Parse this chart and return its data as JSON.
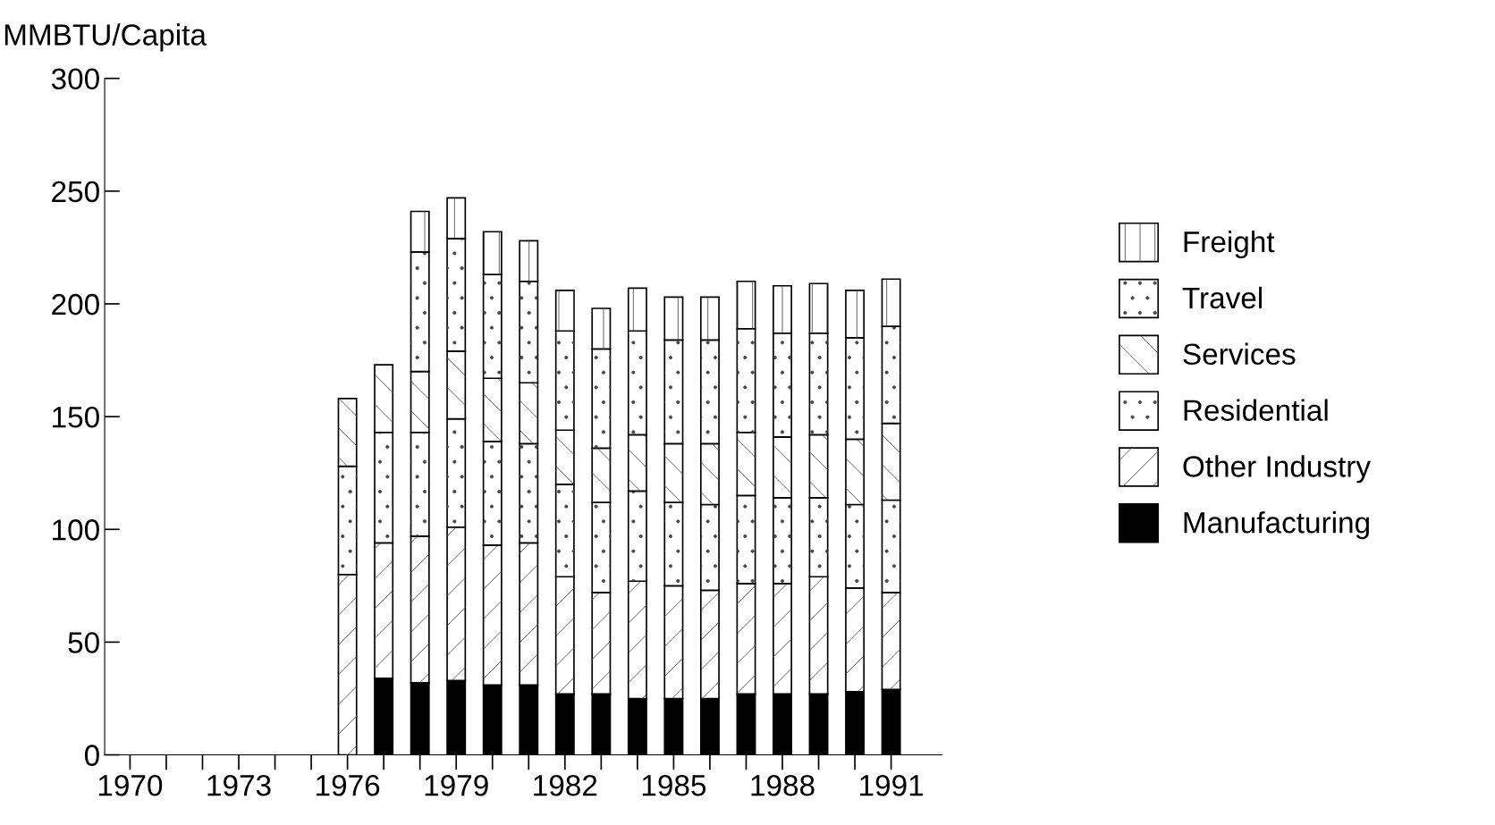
{
  "chart_data": {
    "type": "bar",
    "stacked": true,
    "ylabel": "MMBTU/Capita",
    "categories": [
      "1970",
      null,
      null,
      "1973",
      null,
      null,
      "1976",
      null,
      null,
      "1979",
      null,
      null,
      "1982",
      null,
      null,
      "1985",
      null,
      null,
      "1988",
      null,
      null,
      "1991"
    ],
    "series": [
      {
        "name": "Manufacturing",
        "color": "#000000",
        "values": [
          null,
          null,
          null,
          null,
          null,
          null,
          null,
          34,
          32,
          33,
          31,
          31,
          27,
          27,
          25,
          25,
          25,
          27,
          27,
          27,
          28,
          29
        ]
      },
      {
        "name": "Other Industry",
        "color": "#ffffff",
        "values": [
          null,
          null,
          null,
          null,
          null,
          null,
          80,
          60,
          65,
          68,
          62,
          63,
          52,
          45,
          52,
          50,
          48,
          49,
          49,
          52,
          46,
          43
        ]
      },
      {
        "name": "Residential",
        "color": "#ffffff",
        "values": [
          null,
          null,
          null,
          null,
          null,
          null,
          48,
          49,
          46,
          48,
          46,
          44,
          41,
          40,
          40,
          37,
          38,
          39,
          38,
          35,
          37,
          41
        ]
      },
      {
        "name": "Services",
        "color": "#ffffff",
        "values": [
          null,
          null,
          null,
          null,
          null,
          null,
          30,
          30,
          27,
          30,
          28,
          27,
          24,
          24,
          25,
          26,
          27,
          28,
          27,
          28,
          29,
          34
        ]
      },
      {
        "name": "Travel",
        "color": "#ffffff",
        "values": [
          null,
          null,
          null,
          null,
          null,
          null,
          null,
          null,
          53,
          50,
          46,
          45,
          44,
          44,
          46,
          46,
          46,
          46,
          46,
          45,
          45,
          43
        ]
      },
      {
        "name": "Freight",
        "color": "#ffffff",
        "values": [
          null,
          null,
          null,
          null,
          null,
          null,
          null,
          null,
          18,
          18,
          19,
          18,
          18,
          18,
          19,
          19,
          19,
          21,
          21,
          22,
          21,
          21
        ]
      }
    ],
    "ylim": [
      0,
      300
    ],
    "yticks": [
      0,
      50,
      100,
      150,
      200,
      250,
      300
    ],
    "grid": false,
    "legend": "right"
  }
}
